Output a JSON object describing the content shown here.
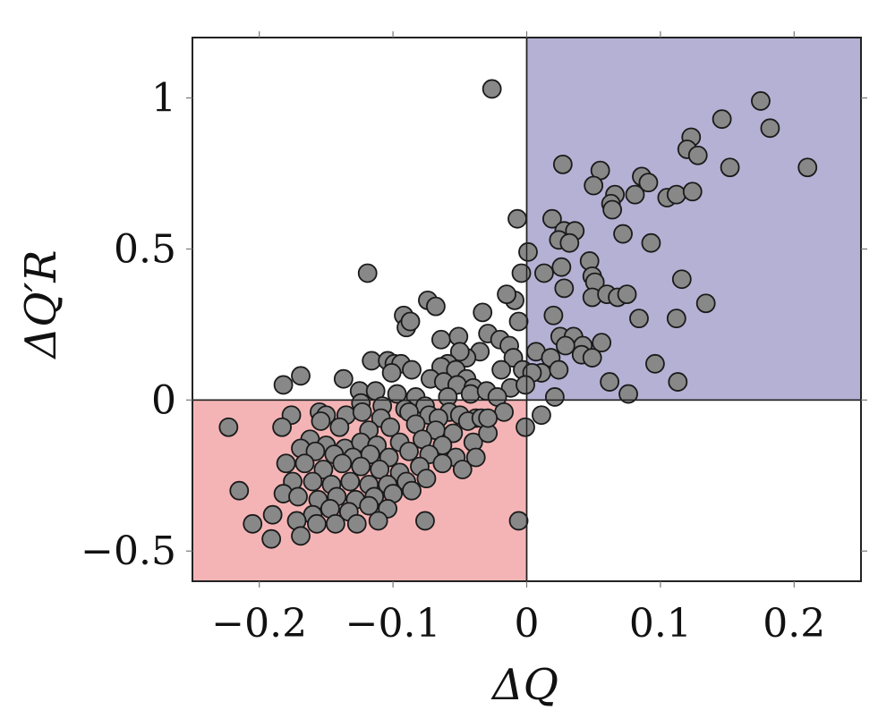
{
  "chart_data": {
    "type": "scatter",
    "title": "",
    "xlabel": "ΔQ",
    "ylabel": "ΔQ′R",
    "xlim": [
      -0.25,
      0.25
    ],
    "ylim": [
      -0.6,
      1.2
    ],
    "x_ticks": [
      -0.2,
      -0.1,
      0,
      0.1,
      0.2
    ],
    "y_ticks": [
      -0.5,
      0,
      0.5,
      1
    ],
    "x_tick_labels": [
      "−0.2",
      "−0.1",
      "0",
      "0.1",
      "0.2"
    ],
    "y_tick_labels": [
      "−0.5",
      "0",
      "0.5",
      "1"
    ],
    "grid": false,
    "legend": "none",
    "quadrants": [
      {
        "x": [
          0,
          0.25
        ],
        "y": [
          0,
          1.2
        ],
        "color": "#b4b1d4"
      },
      {
        "x": [
          -0.25,
          0
        ],
        "y": [
          -0.6,
          0
        ],
        "color": "#f4b4b5"
      }
    ],
    "marker_color": "#888888",
    "series": [
      {
        "points": [
          [
            -0.026,
            1.03
          ],
          [
            0.175,
            0.99
          ],
          [
            0.146,
            0.93
          ],
          [
            0.123,
            0.87
          ],
          [
            0.182,
            0.9
          ],
          [
            0.12,
            0.83
          ],
          [
            0.128,
            0.81
          ],
          [
            0.027,
            0.78
          ],
          [
            0.21,
            0.77
          ],
          [
            0.152,
            0.77
          ],
          [
            0.055,
            0.76
          ],
          [
            0.086,
            0.74
          ],
          [
            0.091,
            0.72
          ],
          [
            0.05,
            0.71
          ],
          [
            0.081,
            0.68
          ],
          [
            0.066,
            0.68
          ],
          [
            0.105,
            0.67
          ],
          [
            0.112,
            0.68
          ],
          [
            0.124,
            0.69
          ],
          [
            0.063,
            0.65
          ],
          [
            0.064,
            0.63
          ],
          [
            0.019,
            0.6
          ],
          [
            -0.007,
            0.6
          ],
          [
            0.028,
            0.56
          ],
          [
            0.036,
            0.56
          ],
          [
            0.024,
            0.53
          ],
          [
            0.032,
            0.52
          ],
          [
            0.072,
            0.55
          ],
          [
            0.093,
            0.52
          ],
          [
            0.001,
            0.49
          ],
          [
            0.047,
            0.46
          ],
          [
            0.049,
            0.41
          ],
          [
            0.051,
            0.39
          ],
          [
            -0.119,
            0.42
          ],
          [
            0.026,
            0.44
          ],
          [
            0.013,
            0.42
          ],
          [
            0.116,
            0.4
          ],
          [
            -0.004,
            0.42
          ],
          [
            -0.074,
            0.33
          ],
          [
            -0.009,
            0.33
          ],
          [
            0.028,
            0.37
          ],
          [
            0.049,
            0.34
          ],
          [
            0.06,
            0.35
          ],
          [
            0.068,
            0.34
          ],
          [
            0.075,
            0.35
          ],
          [
            0.134,
            0.32
          ],
          [
            0.084,
            0.27
          ],
          [
            0.112,
            0.27
          ],
          [
            -0.015,
            0.35
          ],
          [
            -0.033,
            0.29
          ],
          [
            -0.068,
            0.31
          ],
          [
            -0.092,
            0.28
          ],
          [
            -0.09,
            0.24
          ],
          [
            -0.087,
            0.26
          ],
          [
            -0.006,
            0.26
          ],
          [
            0.02,
            0.28
          ],
          [
            0.025,
            0.21
          ],
          [
            0.035,
            0.21
          ],
          [
            0.042,
            0.18
          ],
          [
            0.056,
            0.19
          ],
          [
            -0.064,
            0.2
          ],
          [
            -0.051,
            0.21
          ],
          [
            -0.029,
            0.22
          ],
          [
            -0.02,
            0.2
          ],
          [
            -0.013,
            0.18
          ],
          [
            0.007,
            0.16
          ],
          [
            0.029,
            0.18
          ],
          [
            0.041,
            0.15
          ],
          [
            0.049,
            0.14
          ],
          [
            0.062,
            0.06
          ],
          [
            0.076,
            0.02
          ],
          [
            0.096,
            0.12
          ],
          [
            0.113,
            0.06
          ],
          [
            -0.035,
            0.16
          ],
          [
            -0.045,
            0.14
          ],
          [
            -0.05,
            0.16
          ],
          [
            -0.059,
            0.12
          ],
          [
            -0.01,
            0.14
          ],
          [
            0.018,
            0.14
          ],
          [
            0.011,
            0.09
          ],
          [
            -0.116,
            0.13
          ],
          [
            -0.104,
            0.13
          ],
          [
            -0.099,
            0.12
          ],
          [
            -0.094,
            0.12
          ],
          [
            -0.101,
            0.09
          ],
          [
            -0.086,
            0.1
          ],
          [
            -0.064,
            0.11
          ],
          [
            -0.053,
            0.1
          ],
          [
            -0.045,
            0.07
          ],
          [
            -0.019,
            0.1
          ],
          [
            -0.003,
            0.1
          ],
          [
            0.004,
            0.09
          ],
          [
            -0.169,
            0.08
          ],
          [
            -0.182,
            0.05
          ],
          [
            -0.137,
            0.07
          ],
          [
            -0.072,
            0.07
          ],
          [
            -0.062,
            0.06
          ],
          [
            -0.052,
            0.05
          ],
          [
            -0.04,
            0.04
          ],
          [
            -0.012,
            0.04
          ],
          [
            -0.001,
            0.05
          ],
          [
            -0.125,
            0.03
          ],
          [
            -0.113,
            0.03
          ],
          [
            -0.097,
            0.02
          ],
          [
            -0.083,
            0.01
          ],
          [
            -0.059,
            0.01
          ],
          [
            -0.042,
            0.02
          ],
          [
            -0.03,
            0.03
          ],
          [
            -0.022,
            0.01
          ],
          [
            0.021,
            0.01
          ],
          [
            -0.124,
            -0.01
          ],
          [
            -0.108,
            -0.02
          ],
          [
            -0.091,
            -0.03
          ],
          [
            -0.076,
            -0.02
          ],
          [
            -0.058,
            -0.04
          ],
          [
            -0.05,
            -0.05
          ],
          [
            -0.038,
            -0.06
          ],
          [
            -0.017,
            -0.04
          ],
          [
            0.011,
            -0.05
          ],
          [
            -0.001,
            -0.09
          ],
          [
            -0.223,
            -0.09
          ],
          [
            -0.176,
            -0.05
          ],
          [
            -0.155,
            -0.04
          ],
          [
            -0.15,
            -0.05
          ],
          [
            -0.135,
            -0.05
          ],
          [
            -0.123,
            -0.04
          ],
          [
            -0.109,
            -0.06
          ],
          [
            -0.088,
            -0.04
          ],
          [
            -0.073,
            -0.05
          ],
          [
            -0.066,
            -0.06
          ],
          [
            -0.044,
            -0.07
          ],
          [
            -0.034,
            -0.06
          ],
          [
            -0.183,
            -0.09
          ],
          [
            -0.154,
            -0.07
          ],
          [
            -0.14,
            -0.09
          ],
          [
            -0.118,
            -0.1
          ],
          [
            -0.102,
            -0.09
          ],
          [
            -0.083,
            -0.08
          ],
          [
            -0.068,
            -0.1
          ],
          [
            -0.055,
            -0.11
          ],
          [
            -0.04,
            -0.14
          ],
          [
            -0.029,
            -0.11
          ],
          [
            -0.162,
            -0.13
          ],
          [
            -0.15,
            -0.15
          ],
          [
            -0.136,
            -0.16
          ],
          [
            -0.124,
            -0.14
          ],
          [
            -0.112,
            -0.15
          ],
          [
            -0.095,
            -0.14
          ],
          [
            -0.078,
            -0.13
          ],
          [
            -0.063,
            -0.15
          ],
          [
            -0.169,
            -0.16
          ],
          [
            -0.158,
            -0.17
          ],
          [
            -0.144,
            -0.18
          ],
          [
            -0.13,
            -0.19
          ],
          [
            -0.117,
            -0.18
          ],
          [
            -0.103,
            -0.19
          ],
          [
            -0.088,
            -0.17
          ],
          [
            -0.073,
            -0.18
          ],
          [
            -0.053,
            -0.19
          ],
          [
            -0.038,
            -0.19
          ],
          [
            -0.18,
            -0.21
          ],
          [
            -0.166,
            -0.21
          ],
          [
            -0.152,
            -0.23
          ],
          [
            -0.138,
            -0.21
          ],
          [
            -0.124,
            -0.22
          ],
          [
            -0.11,
            -0.23
          ],
          [
            -0.095,
            -0.24
          ],
          [
            -0.08,
            -0.22
          ],
          [
            -0.063,
            -0.21
          ],
          [
            -0.048,
            -0.23
          ],
          [
            -0.175,
            -0.27
          ],
          [
            -0.16,
            -0.27
          ],
          [
            -0.146,
            -0.28
          ],
          [
            -0.132,
            -0.27
          ],
          [
            -0.118,
            -0.28
          ],
          [
            -0.104,
            -0.28
          ],
          [
            -0.09,
            -0.27
          ],
          [
            -0.075,
            -0.26
          ],
          [
            -0.182,
            -0.31
          ],
          [
            -0.171,
            -0.32
          ],
          [
            -0.156,
            -0.33
          ],
          [
            -0.142,
            -0.32
          ],
          [
            -0.128,
            -0.33
          ],
          [
            -0.114,
            -0.32
          ],
          [
            -0.1,
            -0.31
          ],
          [
            -0.086,
            -0.3
          ],
          [
            -0.215,
            -0.3
          ],
          [
            -0.16,
            -0.38
          ],
          [
            -0.147,
            -0.36
          ],
          [
            -0.133,
            -0.37
          ],
          [
            -0.118,
            -0.35
          ],
          [
            -0.104,
            -0.36
          ],
          [
            -0.19,
            -0.38
          ],
          [
            -0.172,
            -0.4
          ],
          [
            -0.157,
            -0.41
          ],
          [
            -0.143,
            -0.41
          ],
          [
            -0.127,
            -0.41
          ],
          [
            -0.111,
            -0.4
          ],
          [
            -0.205,
            -0.41
          ],
          [
            -0.191,
            -0.46
          ],
          [
            -0.169,
            -0.45
          ],
          [
            -0.076,
            -0.4
          ],
          [
            -0.006,
            -0.4
          ],
          [
            -0.029,
            -0.06
          ],
          [
            0.024,
            0.1
          ]
        ]
      }
    ]
  }
}
